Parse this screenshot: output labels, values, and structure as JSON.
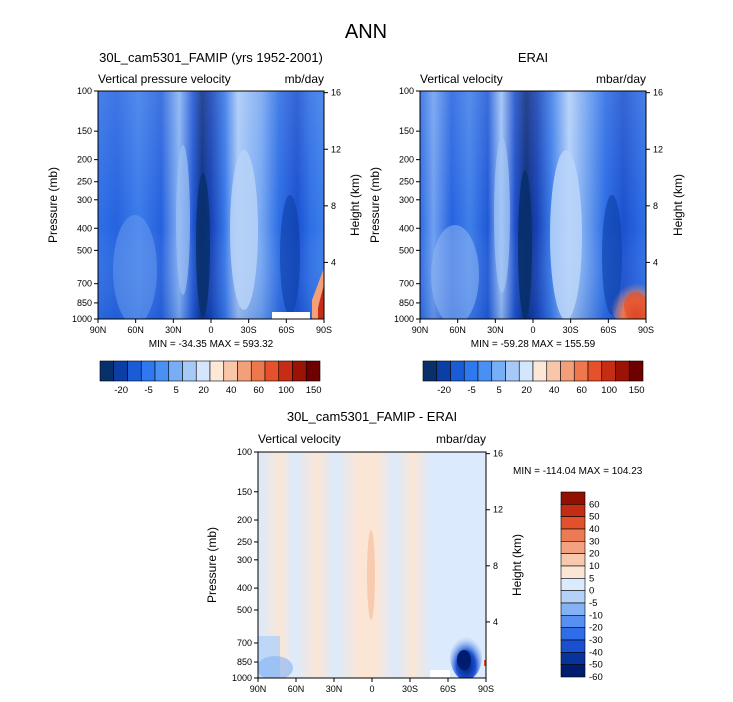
{
  "figure": {
    "title": "ANN"
  },
  "colors": {
    "diverging": [
      "#08306b",
      "#0c3fa6",
      "#1a5cd6",
      "#2e78f0",
      "#4a8ff2",
      "#78aef5",
      "#a7c9f8",
      "#d4e6fb",
      "#fde8d8",
      "#f8c7a9",
      "#f3a07a",
      "#ee774d",
      "#e4512b",
      "#c72c14",
      "#9b1305",
      "#6e0000"
    ],
    "diff_scale": [
      "#001c6e",
      "#08339a",
      "#1a4fd0",
      "#2f6ee8",
      "#5690f0",
      "#84b2f5",
      "#b4d2f9",
      "#dbeafc",
      "#fbe6d6",
      "#f7c8ad",
      "#f2a281",
      "#ec7a54",
      "#e0512c",
      "#c32d13",
      "#901100"
    ]
  },
  "chart_data": [
    {
      "type": "heatmap",
      "title": "30L_cam5301_FAMIP (yrs 1952-2001)",
      "left_label": "Vertical pressure velocity",
      "right_label": "mb/day",
      "xlabel": "",
      "ylabel": "Pressure (mb)",
      "y2label": "Height (km)",
      "x_ticks": [
        "90N",
        "60N",
        "30N",
        "0",
        "30S",
        "60S",
        "90S"
      ],
      "y_ticks": [
        "100",
        "150",
        "200",
        "250",
        "300",
        "400",
        "500",
        "700",
        "850",
        "1000"
      ],
      "y2_ticks": [
        "16",
        "12",
        "8",
        "4"
      ],
      "stats": "MIN = -34.35  MAX = 593.32",
      "levels": [
        "-20",
        "-5",
        "5",
        "20",
        "40",
        "60",
        "100",
        "150"
      ]
    },
    {
      "type": "heatmap",
      "title": "ERAI",
      "left_label": "Vertical velocity",
      "right_label": "mbar/day",
      "xlabel": "",
      "ylabel": "Pressure (mb)",
      "y2label": "Height (km)",
      "x_ticks": [
        "90N",
        "60N",
        "30N",
        "0",
        "30S",
        "60S",
        "90S"
      ],
      "y_ticks": [
        "100",
        "150",
        "200",
        "250",
        "300",
        "400",
        "500",
        "700",
        "850",
        "1000"
      ],
      "y2_ticks": [
        "16",
        "12",
        "8",
        "4"
      ],
      "stats": "MIN = -59.28  MAX = 155.59",
      "levels": [
        "-20",
        "-5",
        "5",
        "20",
        "40",
        "60",
        "100",
        "150"
      ]
    },
    {
      "type": "heatmap",
      "title": "30L_cam5301_FAMIP - ERAI",
      "left_label": "Vertical velocity",
      "right_label": "mbar/day",
      "xlabel": "",
      "ylabel": "Pressure (mb)",
      "y2label": "Height (km)",
      "x_ticks": [
        "90N",
        "60N",
        "30N",
        "0",
        "30S",
        "60S",
        "90S"
      ],
      "y_ticks": [
        "100",
        "150",
        "200",
        "250",
        "300",
        "400",
        "500",
        "700",
        "850",
        "1000"
      ],
      "y2_ticks": [
        "16",
        "12",
        "8",
        "4"
      ],
      "stats": "MIN = -114.04  MAX = 104.23",
      "levels": [
        "60",
        "50",
        "40",
        "30",
        "20",
        "10",
        "5",
        "0",
        "-5",
        "-10",
        "-20",
        "-30",
        "-40",
        "-50",
        "-60"
      ]
    }
  ]
}
